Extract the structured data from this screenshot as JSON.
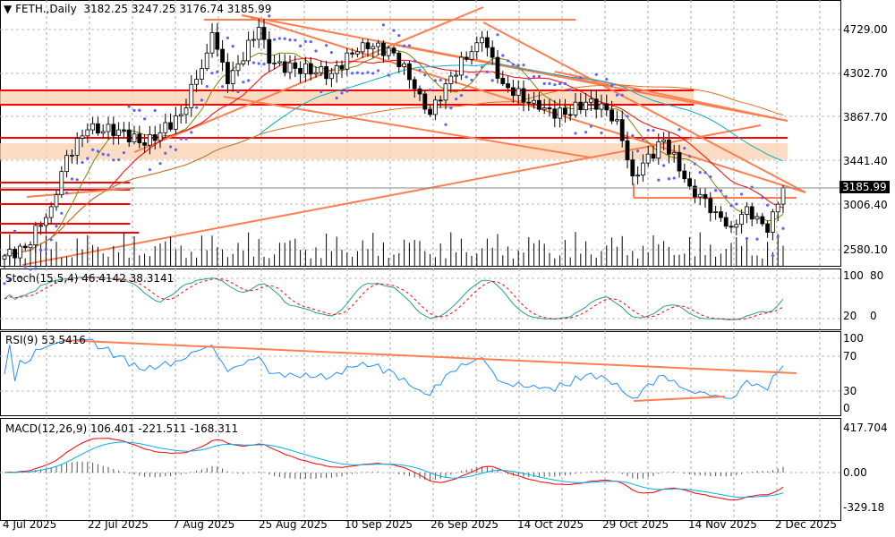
{
  "header": {
    "symbol": "FETH.",
    "timeframe": "Daily",
    "open": "3182.25",
    "high": "3247.25",
    "low": "3176.74",
    "close": "3185.99"
  },
  "price_axis": [
    "4729.00",
    "4302.70",
    "3867.70",
    "3441.40",
    "3006.40",
    "2580.10"
  ],
  "current_price": "3185.99",
  "stoch": {
    "label": "Stoch(15,5,4) 46.4142 38.3141",
    "axis": [
      "100",
      "80",
      "20",
      "0"
    ]
  },
  "rsi": {
    "label": "RSI(9) 53.5416",
    "axis": [
      "100",
      "70",
      "30",
      "0"
    ]
  },
  "macd": {
    "label": "MACD(12,26,9) 106.401 -221.511 -168.311",
    "axis": [
      "417.704",
      "0.00",
      "-329.18"
    ]
  },
  "dates": [
    "4 Jul 2025",
    "22 Jul 2025",
    "7 Aug 2025",
    "25 Aug 2025",
    "10 Sep 2025",
    "26 Sep 2025",
    "14 Oct 2025",
    "29 Oct 2025",
    "14 Nov 2025",
    "2 Dec 2025"
  ],
  "colors": {
    "bull": "#ffffff",
    "bear": "#000000",
    "ma_fast": "#808000",
    "ma_mid": "#ff0000",
    "ma_slow": "#00b0c0",
    "ma_long": "#e07020",
    "sar": "#6060ff",
    "hline": "#ff0000",
    "trend": "#ff7f50"
  },
  "chart_data": {
    "type": "candlestick",
    "title": "FETH., Daily",
    "candle_count": 151,
    "close_anchors": [
      [
        0,
        2520
      ],
      [
        4,
        2600
      ],
      [
        9,
        3000
      ],
      [
        12,
        3500
      ],
      [
        16,
        3750
      ],
      [
        22,
        3750
      ],
      [
        27,
        3600
      ],
      [
        34,
        3900
      ],
      [
        39,
        4500
      ],
      [
        40,
        4700
      ],
      [
        43,
        4200
      ],
      [
        49,
        4750
      ],
      [
        51,
        4400
      ],
      [
        56,
        4350
      ],
      [
        63,
        4300
      ],
      [
        69,
        4600
      ],
      [
        75,
        4500
      ],
      [
        80,
        4100
      ],
      [
        82,
        3900
      ],
      [
        85,
        4200
      ],
      [
        91,
        4600
      ],
      [
        92,
        4650
      ],
      [
        96,
        4200
      ],
      [
        103,
        3950
      ],
      [
        108,
        3900
      ],
      [
        113,
        4050
      ],
      [
        118,
        3850
      ],
      [
        121,
        3300
      ],
      [
        127,
        3650
      ],
      [
        132,
        3200
      ],
      [
        137,
        2950
      ],
      [
        140,
        2800
      ],
      [
        143,
        3000
      ],
      [
        147,
        2750
      ],
      [
        150,
        3186
      ]
    ],
    "ylim": [
      2530,
      4870
    ]
  }
}
